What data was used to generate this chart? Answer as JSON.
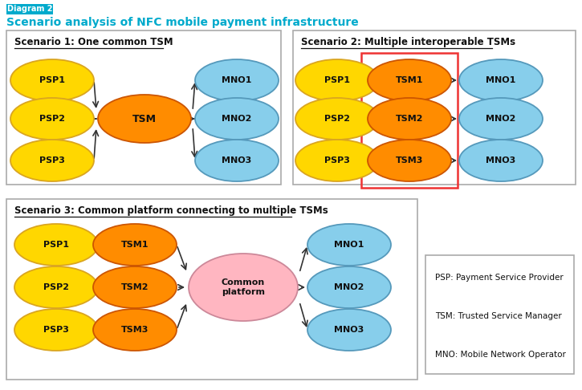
{
  "title": "Scenario analysis of NFC mobile payment infrastructure",
  "diagram_label": "Diagram 2",
  "title_color": "#00AACC",
  "diagram_label_bg": "#00AACC",
  "scenario1_title": "Scenario 1: One common TSM",
  "scenario2_title": "Scenario 2: Multiple interoperable TSMs",
  "scenario3_title": "Scenario 3: Common platform connecting to multiple TSMs",
  "psp_color": "#FFD700",
  "psp_edge_color": "#DAA520",
  "tsm_color": "#FF8C00",
  "tsm_edge_color": "#CC5500",
  "mno_color": "#87CEEB",
  "mno_edge_color": "#5599BB",
  "common_platform_color": "#FFB6C1",
  "common_platform_edge_color": "#CC8899",
  "box_edge_color": "#AAAAAA",
  "red_box_color": "#EE3333",
  "legend_text": [
    "PSP: Payment Service Provider",
    "TSM: Trusted Service Manager",
    "MNO: Mobile Network Operator"
  ],
  "arrow_color": "#333333",
  "bg_color": "#FFFFFF"
}
